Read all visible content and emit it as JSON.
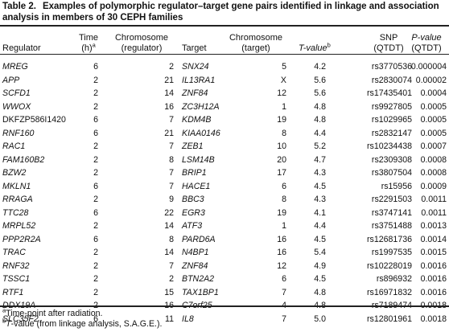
{
  "caption": {
    "label": "Table 2.",
    "text": "Examples of polymorphic regulator–target gene pairs identified in linkage and association analysis in members of 30 CEPH families"
  },
  "headers": {
    "regulator": "Regulator",
    "time_line1": "Time",
    "time_line2": "(h)",
    "time_sup": "a",
    "chrom_reg_line1": "Chromosome",
    "chrom_reg_line2": "(regulator)",
    "target": "Target",
    "chrom_tgt_line1": "Chromosome",
    "chrom_tgt_line2": "(target)",
    "tvalue": "T-value",
    "tvalue_sup": "b",
    "snp_line1": "SNP",
    "snp_line2": "(QTDT)",
    "pval_line1": "P-value",
    "pval_line2": "(QTDT)"
  },
  "rows": [
    {
      "regulator": "MREG",
      "regulator_italic": true,
      "time": "6",
      "chr_reg": "2",
      "target": "SNX24",
      "chr_tgt": "5",
      "t": "4.2",
      "snp": "rs3770536",
      "p": "0.000004"
    },
    {
      "regulator": "APP",
      "regulator_italic": true,
      "time": "2",
      "chr_reg": "21",
      "target": "IL13RA1",
      "chr_tgt": "X",
      "t": "5.6",
      "snp": "rs2830074",
      "p": "0.00002"
    },
    {
      "regulator": "SCFD1",
      "regulator_italic": true,
      "time": "2",
      "chr_reg": "14",
      "target": "ZNF84",
      "chr_tgt": "12",
      "t": "5.6",
      "snp": "rs17435401",
      "p": "0.0004"
    },
    {
      "regulator": "WWOX",
      "regulator_italic": true,
      "time": "2",
      "chr_reg": "16",
      "target": "ZC3H12A",
      "chr_tgt": "1",
      "t": "4.8",
      "snp": "rs9927805",
      "p": "0.0005"
    },
    {
      "regulator": "DKFZP586I1420",
      "regulator_italic": false,
      "time": "6",
      "chr_reg": "7",
      "target": "KDM4B",
      "chr_tgt": "19",
      "t": "4.8",
      "snp": "rs1029965",
      "p": "0.0005"
    },
    {
      "regulator": "RNF160",
      "regulator_italic": true,
      "time": "6",
      "chr_reg": "21",
      "target": "KIAA0146",
      "chr_tgt": "8",
      "t": "4.4",
      "snp": "rs2832147",
      "p": "0.0005"
    },
    {
      "regulator": "RAC1",
      "regulator_italic": true,
      "time": "2",
      "chr_reg": "7",
      "target": "ZEB1",
      "chr_tgt": "10",
      "t": "5.2",
      "snp": "rs10234438",
      "p": "0.0007"
    },
    {
      "regulator": "FAM160B2",
      "regulator_italic": true,
      "time": "2",
      "chr_reg": "8",
      "target": "LSM14B",
      "chr_tgt": "20",
      "t": "4.7",
      "snp": "rs2309308",
      "p": "0.0008"
    },
    {
      "regulator": "BZW2",
      "regulator_italic": true,
      "time": "2",
      "chr_reg": "7",
      "target": "BRIP1",
      "chr_tgt": "17",
      "t": "4.3",
      "snp": "rs3807504",
      "p": "0.0008"
    },
    {
      "regulator": "MKLN1",
      "regulator_italic": true,
      "time": "6",
      "chr_reg": "7",
      "target": "HACE1",
      "chr_tgt": "6",
      "t": "4.5",
      "snp": "rs15956",
      "p": "0.0009"
    },
    {
      "regulator": "RRAGA",
      "regulator_italic": true,
      "time": "2",
      "chr_reg": "9",
      "target": "BBC3",
      "chr_tgt": "8",
      "t": "4.3",
      "snp": "rs2291503",
      "p": "0.0011"
    },
    {
      "regulator": "TTC28",
      "regulator_italic": true,
      "time": "6",
      "chr_reg": "22",
      "target": "EGR3",
      "chr_tgt": "19",
      "t": "4.1",
      "snp": "rs3747141",
      "p": "0.0011"
    },
    {
      "regulator": "MRPL52",
      "regulator_italic": true,
      "time": "2",
      "chr_reg": "14",
      "target": "ATF3",
      "chr_tgt": "1",
      "t": "4.4",
      "snp": "rs3751488",
      "p": "0.0013"
    },
    {
      "regulator": "PPP2R2A",
      "regulator_italic": true,
      "time": "6",
      "chr_reg": "8",
      "target": "PARD6A",
      "chr_tgt": "16",
      "t": "4.5",
      "snp": "rs12681736",
      "p": "0.0014"
    },
    {
      "regulator": "TRAC",
      "regulator_italic": true,
      "time": "2",
      "chr_reg": "14",
      "target": "N4BP1",
      "chr_tgt": "16",
      "t": "5.4",
      "snp": "rs1997535",
      "p": "0.0015"
    },
    {
      "regulator": "RNF32",
      "regulator_italic": true,
      "time": "2",
      "chr_reg": "7",
      "target": "ZNF84",
      "chr_tgt": "12",
      "t": "4.9",
      "snp": "rs10228019",
      "p": "0.0016"
    },
    {
      "regulator": "TSSC1",
      "regulator_italic": true,
      "time": "2",
      "chr_reg": "2",
      "target": "BTN2A2",
      "chr_tgt": "6",
      "t": "4.5",
      "snp": "rs896932",
      "p": "0.0016"
    },
    {
      "regulator": "RTF1",
      "regulator_italic": true,
      "time": "2",
      "chr_reg": "15",
      "target": "TAX1BP1",
      "chr_tgt": "7",
      "t": "4.8",
      "snp": "rs16971832",
      "p": "0.0016"
    },
    {
      "regulator": "DDX19A",
      "regulator_italic": true,
      "time": "2",
      "chr_reg": "16",
      "target": "C7orf25",
      "chr_tgt": "4",
      "t": "4.8",
      "snp": "rs7189474",
      "p": "0.0018"
    },
    {
      "regulator": "SLC35F2",
      "regulator_italic": true,
      "time": "6",
      "chr_reg": "11",
      "target": "IL8",
      "chr_tgt": "7",
      "t": "5.0",
      "snp": "rs12801961",
      "p": "0.0018"
    }
  ],
  "footnotes": {
    "a_sup": "a",
    "a_text": "Time-point after radiation.",
    "b_sup": "b",
    "b_text_italic": "T",
    "b_text": "-value (from linkage analysis, S.A.G.E.)."
  }
}
